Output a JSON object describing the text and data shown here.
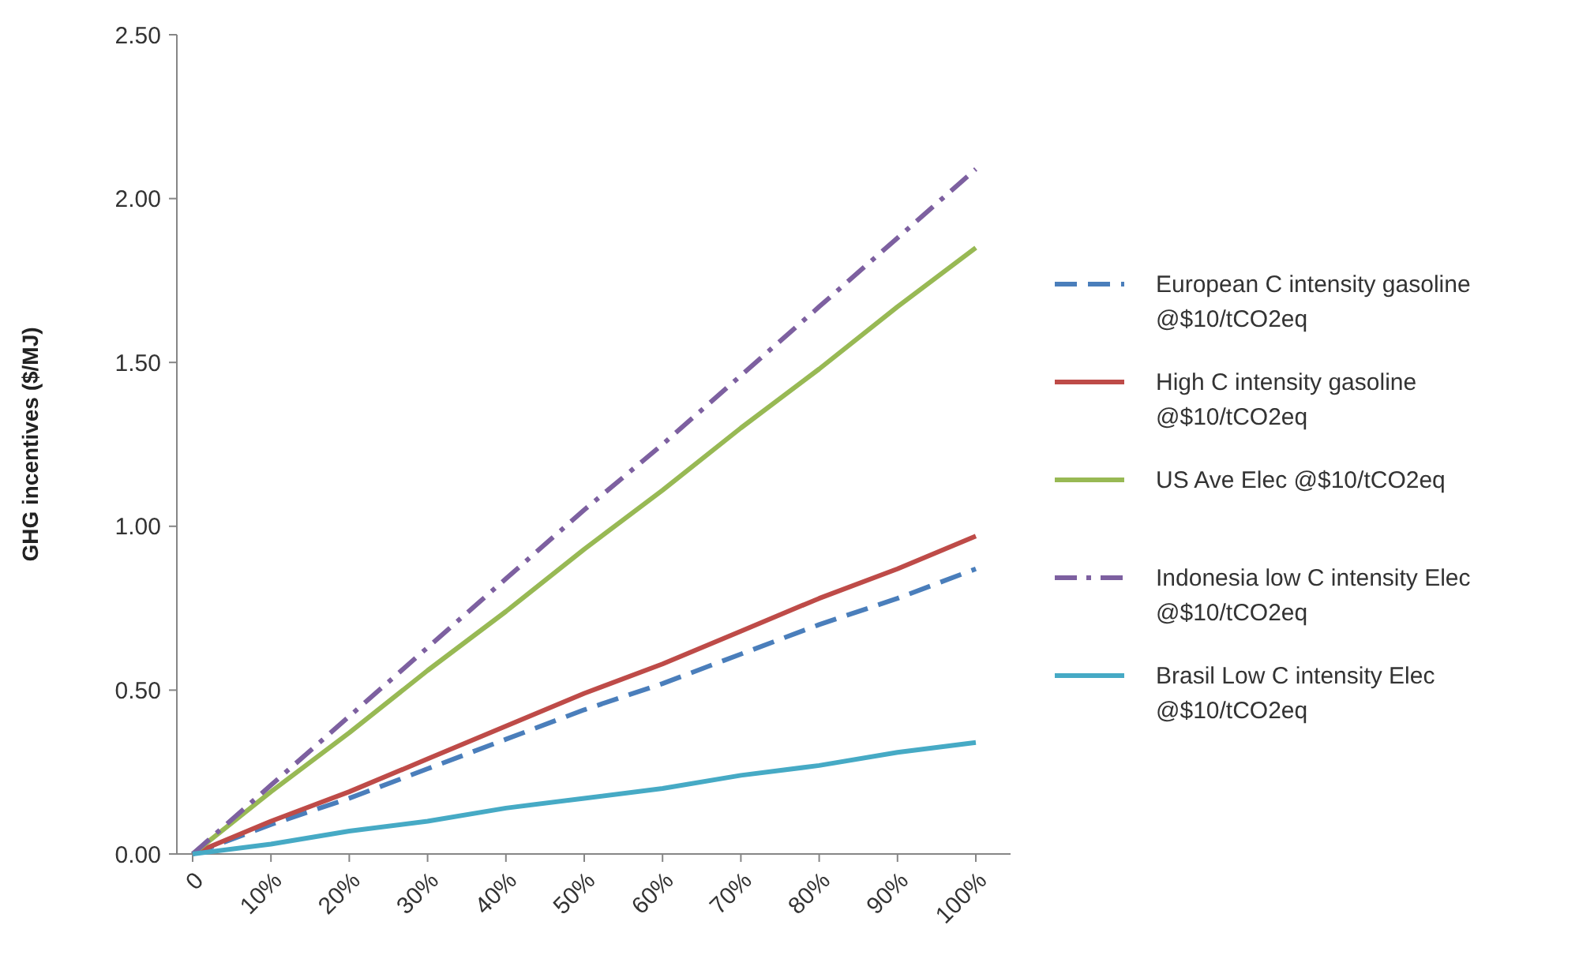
{
  "chart_data": {
    "type": "line",
    "ylabel": "GHG incentives ($/MJ)",
    "categories": [
      "0",
      "10%",
      "20%",
      "30%",
      "40%",
      "50%",
      "60%",
      "70%",
      "80%",
      "90%",
      "100%"
    ],
    "ylim": [
      0,
      2.5
    ],
    "yticks": [
      {
        "value": 0,
        "label": "0.00"
      },
      {
        "value": 0.5,
        "label": "0.50"
      },
      {
        "value": 1,
        "label": "1.00"
      },
      {
        "value": 1.5,
        "label": "1.50"
      },
      {
        "value": 2,
        "label": "2.00"
      },
      {
        "value": 2.5,
        "label": "2.50"
      }
    ],
    "grid": false,
    "legend": "right",
    "marker": "none",
    "series": [
      {
        "name": "European C intensity gasoline @$10/tCO2eq",
        "color": "#4a7ebb",
        "line_style": "dashed",
        "values": [
          0,
          0.09,
          0.17,
          0.26,
          0.35,
          0.44,
          0.52,
          0.61,
          0.7,
          0.78,
          0.87
        ]
      },
      {
        "name": "High C intensity gasoline @$10/tCO2eq",
        "color": "#be4b48",
        "line_style": "solid",
        "values": [
          0,
          0.1,
          0.19,
          0.29,
          0.39,
          0.49,
          0.58,
          0.68,
          0.78,
          0.87,
          0.97
        ]
      },
      {
        "name": "US Ave Elec @$10/tCO2eq",
        "color": "#98b954",
        "line_style": "solid",
        "values": [
          0,
          0.19,
          0.37,
          0.56,
          0.74,
          0.93,
          1.11,
          1.3,
          1.48,
          1.67,
          1.85
        ]
      },
      {
        "name": "Indonesia low C intensity Elec @$10/tCO2eq",
        "color": "#7d60a0",
        "line_style": "dashdot",
        "values": [
          0,
          0.21,
          0.42,
          0.63,
          0.84,
          1.05,
          1.25,
          1.46,
          1.67,
          1.88,
          2.09
        ]
      },
      {
        "name": "Brasil Low C intensity Elec @$10/tCO2eq",
        "color": "#46aac5",
        "line_style": "solid",
        "values": [
          0,
          0.03,
          0.07,
          0.1,
          0.14,
          0.17,
          0.2,
          0.24,
          0.27,
          0.31,
          0.34
        ]
      }
    ]
  }
}
